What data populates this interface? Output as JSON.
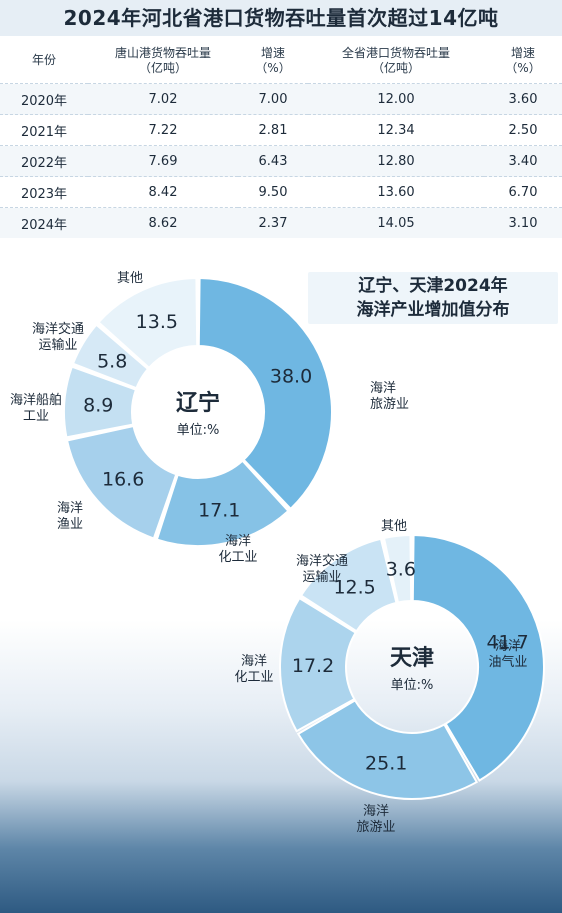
{
  "table_title": "2024年河北省港口货物吞吐量首次超过14亿吨",
  "table": {
    "headers": {
      "year": "年份",
      "tangshan": [
        "唐山港货物吞吐量",
        "（亿吨）"
      ],
      "growth1": [
        "增速",
        "（%）"
      ],
      "province": [
        "全省港口货物吞吐量",
        "（亿吨）"
      ],
      "growth2": [
        "增速",
        "（%）"
      ]
    },
    "rows": [
      {
        "year": "2020年",
        "tangshan": "7.02",
        "growth1": "7.00",
        "province": "12.00",
        "growth2": "3.60"
      },
      {
        "year": "2021年",
        "tangshan": "7.22",
        "growth1": "2.81",
        "province": "12.34",
        "growth2": "2.50"
      },
      {
        "year": "2022年",
        "tangshan": "7.69",
        "growth1": "6.43",
        "province": "12.80",
        "growth2": "3.40"
      },
      {
        "year": "2023年",
        "tangshan": "8.42",
        "growth1": "9.50",
        "province": "13.60",
        "growth2": "6.70"
      },
      {
        "year": "2024年",
        "tangshan": "8.62",
        "growth1": "2.37",
        "province": "14.05",
        "growth2": "3.10"
      }
    ]
  },
  "pie_title": [
    "辽宁、天津2024年",
    "海洋产业增加值分布"
  ],
  "chart_data": [
    {
      "type": "table",
      "title": "2024年河北省港口货物吞吐量首次超过14亿吨",
      "columns": [
        "年份",
        "唐山港货物吞吐量（亿吨）",
        "增速（%）",
        "全省港口货物吞吐量（亿吨）",
        "增速（%）"
      ],
      "rows": [
        [
          "2020年",
          7.02,
          7.0,
          12.0,
          3.6
        ],
        [
          "2021年",
          7.22,
          2.81,
          12.34,
          2.5
        ],
        [
          "2022年",
          7.69,
          6.43,
          12.8,
          3.4
        ],
        [
          "2023年",
          8.42,
          9.5,
          13.6,
          6.7
        ],
        [
          "2024年",
          8.62,
          2.37,
          14.05,
          3.1
        ]
      ]
    },
    {
      "type": "pie",
      "center_label": "辽宁",
      "unit": "单位:%",
      "slices": [
        {
          "name": "海洋旅游业",
          "value": 38.0,
          "label": "38.0",
          "color": "#6fb7e2"
        },
        {
          "name": "海洋化工业",
          "value": 17.1,
          "label": "17.1",
          "color": "#86c2e6"
        },
        {
          "name": "海洋渔业",
          "value": 16.6,
          "label": "16.6",
          "color": "#a6d0ec"
        },
        {
          "name": "海洋船舶工业",
          "value": 8.9,
          "label": "8.9",
          "color": "#c4e0f2"
        },
        {
          "name": "海洋交通运输业",
          "value": 5.8,
          "label": "5.8",
          "color": "#d6e9f6"
        },
        {
          "name": "其他",
          "value": 13.5,
          "label": "13.5",
          "color": "#e8f3fa"
        }
      ]
    },
    {
      "type": "pie",
      "center_label": "天津",
      "unit": "单位:%",
      "slices": [
        {
          "name": "海洋油气业",
          "value": 41.7,
          "label": "41.7",
          "color": "#6fb7e2"
        },
        {
          "name": "海洋旅游业",
          "value": 25.1,
          "label": "25.1",
          "color": "#8dc5e7"
        },
        {
          "name": "海洋化工业",
          "value": 17.2,
          "label": "17.2",
          "color": "#acd4ed"
        },
        {
          "name": "海洋交通运输业",
          "value": 12.5,
          "label": "12.5",
          "color": "#c9e3f4"
        },
        {
          "name": "其他",
          "value": 3.6,
          "label": "3.6",
          "color": "#e4f1f9"
        }
      ]
    }
  ]
}
